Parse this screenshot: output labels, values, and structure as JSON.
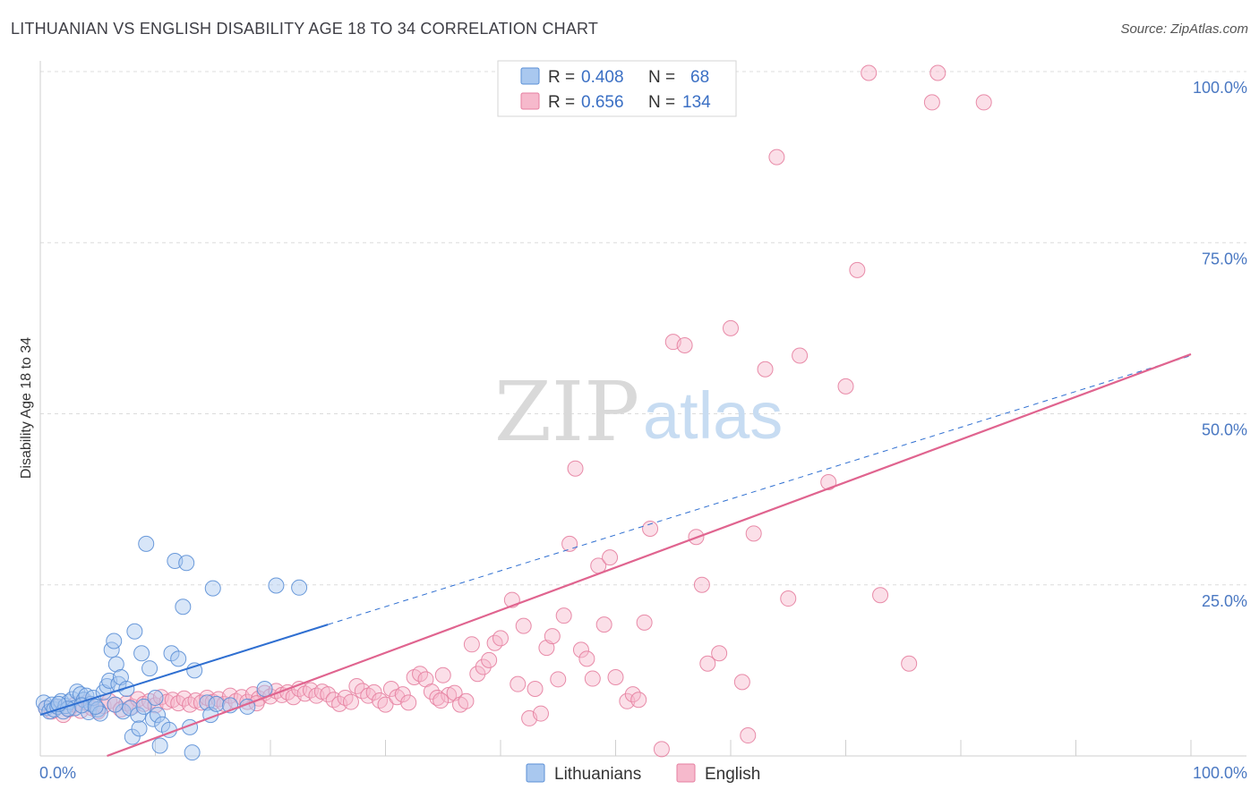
{
  "header": {
    "title": "LITHUANIAN VS ENGLISH DISABILITY AGE 18 TO 34 CORRELATION CHART",
    "source": "Source: ZipAtlas.com"
  },
  "legend_box": {
    "rows": [
      {
        "r_label": "R = ",
        "r_value": "0.408",
        "n_label": "N = ",
        "n_value": "68"
      },
      {
        "r_label": "R = ",
        "r_value": "0.656",
        "n_label": "N = ",
        "n_value": "134"
      }
    ]
  },
  "bottom_legend": {
    "items": [
      "Lithuanians",
      "English"
    ]
  },
  "watermark": {
    "zip": "ZIP",
    "atlas": "atlas"
  },
  "colors": {
    "blue_fill": "#a9c8ef",
    "blue_stroke": "#5b8fd6",
    "blue_line": "#2f6fd1",
    "pink_fill": "#f6b9cc",
    "pink_stroke": "#e57fa0",
    "pink_line": "#e0648f",
    "tick_label": "#4a78c2",
    "grid": "#dcdcdc"
  },
  "chart_data": {
    "type": "scatter",
    "xlabel": "",
    "ylabel": "Disability Age 18 to 34",
    "xlim": [
      0,
      100
    ],
    "ylim": [
      0,
      100
    ],
    "x_tick_labels": [
      "0.0%",
      "100.0%"
    ],
    "y_ticks": [
      25,
      50,
      75,
      100
    ],
    "y_tick_labels": [
      "25.0%",
      "50.0%",
      "75.0%",
      "100.0%"
    ],
    "grid": true,
    "legend_placement": "top-center",
    "series": [
      {
        "name": "Lithuanians",
        "R": 0.408,
        "N": 68,
        "trend": {
          "x0": 0,
          "y0": 6.0,
          "x1": 25,
          "y1": 19.2,
          "x_dash_end": 100,
          "y_dash_end": 58.5
        },
        "points": [
          [
            0.3,
            7.8
          ],
          [
            0.5,
            7.0
          ],
          [
            0.8,
            6.5
          ],
          [
            1.0,
            7.5
          ],
          [
            1.2,
            6.8
          ],
          [
            1.5,
            7.2
          ],
          [
            1.8,
            8.0
          ],
          [
            2.0,
            6.5
          ],
          [
            2.2,
            7.3
          ],
          [
            2.5,
            7.9
          ],
          [
            2.8,
            8.3
          ],
          [
            3.0,
            7.0
          ],
          [
            3.2,
            9.4
          ],
          [
            3.5,
            9.0
          ],
          [
            3.8,
            8.2
          ],
          [
            4.0,
            8.8
          ],
          [
            4.2,
            6.4
          ],
          [
            4.4,
            7.6
          ],
          [
            4.6,
            8.5
          ],
          [
            5.0,
            6.8
          ],
          [
            5.2,
            6.2
          ],
          [
            5.5,
            9.3
          ],
          [
            5.8,
            10.2
          ],
          [
            6.0,
            11.0
          ],
          [
            6.2,
            15.5
          ],
          [
            6.4,
            16.8
          ],
          [
            6.6,
            13.4
          ],
          [
            6.8,
            10.5
          ],
          [
            7.0,
            11.5
          ],
          [
            7.2,
            6.5
          ],
          [
            7.5,
            9.8
          ],
          [
            7.8,
            7.0
          ],
          [
            8.0,
            2.8
          ],
          [
            8.2,
            18.2
          ],
          [
            8.5,
            6.0
          ],
          [
            8.6,
            4.0
          ],
          [
            8.8,
            15.0
          ],
          [
            9.0,
            7.2
          ],
          [
            9.2,
            31.0
          ],
          [
            9.5,
            12.8
          ],
          [
            9.8,
            5.4
          ],
          [
            10.0,
            8.5
          ],
          [
            10.2,
            6.0
          ],
          [
            10.4,
            1.5
          ],
          [
            10.6,
            4.6
          ],
          [
            11.2,
            3.8
          ],
          [
            11.4,
            15.0
          ],
          [
            11.7,
            28.5
          ],
          [
            12.0,
            14.2
          ],
          [
            12.4,
            21.8
          ],
          [
            12.7,
            28.2
          ],
          [
            13.0,
            4.2
          ],
          [
            13.2,
            0.5
          ],
          [
            13.4,
            12.5
          ],
          [
            14.5,
            7.8
          ],
          [
            14.8,
            6.0
          ],
          [
            15.0,
            24.5
          ],
          [
            15.3,
            7.6
          ],
          [
            16.5,
            7.4
          ],
          [
            18.0,
            7.2
          ],
          [
            19.5,
            9.8
          ],
          [
            20.5,
            24.9
          ],
          [
            22.5,
            24.6
          ],
          [
            3.6,
            7.4
          ],
          [
            4.8,
            7.2
          ],
          [
            6.5,
            7.5
          ],
          [
            2.4,
            6.9
          ],
          [
            1.6,
            7.6
          ]
        ]
      },
      {
        "name": "English",
        "R": 0.656,
        "N": 134,
        "trend": {
          "x0": 5.8,
          "y0": 0,
          "x1": 100,
          "y1": 58.7
        },
        "points": [
          [
            0.5,
            7.0
          ],
          [
            1.0,
            6.5
          ],
          [
            1.5,
            7.2
          ],
          [
            2.0,
            6.0
          ],
          [
            2.5,
            6.8
          ],
          [
            3.0,
            7.5
          ],
          [
            3.5,
            6.6
          ],
          [
            4.0,
            7.8
          ],
          [
            4.5,
            7.0
          ],
          [
            5.0,
            6.5
          ],
          [
            5.5,
            7.3
          ],
          [
            6.0,
            8.0
          ],
          [
            6.5,
            7.5
          ],
          [
            7.0,
            6.8
          ],
          [
            7.5,
            7.7
          ],
          [
            8.0,
            7.2
          ],
          [
            8.5,
            8.3
          ],
          [
            9.0,
            7.6
          ],
          [
            9.5,
            8.0
          ],
          [
            10.0,
            7.4
          ],
          [
            10.5,
            8.6
          ],
          [
            11.0,
            7.9
          ],
          [
            11.5,
            8.2
          ],
          [
            12.0,
            7.7
          ],
          [
            12.5,
            8.4
          ],
          [
            13.0,
            7.5
          ],
          [
            13.5,
            8.1
          ],
          [
            14.0,
            7.8
          ],
          [
            14.5,
            8.5
          ],
          [
            15.0,
            7.9
          ],
          [
            15.5,
            8.3
          ],
          [
            16.0,
            7.6
          ],
          [
            16.5,
            8.8
          ],
          [
            17.0,
            8.0
          ],
          [
            17.5,
            8.6
          ],
          [
            18.0,
            7.9
          ],
          [
            18.5,
            9.0
          ],
          [
            19.0,
            8.4
          ],
          [
            19.5,
            9.2
          ],
          [
            20.0,
            8.7
          ],
          [
            20.5,
            9.5
          ],
          [
            21.0,
            8.9
          ],
          [
            21.5,
            9.3
          ],
          [
            22.0,
            8.6
          ],
          [
            22.5,
            9.8
          ],
          [
            23.0,
            9.1
          ],
          [
            23.5,
            9.6
          ],
          [
            24.0,
            8.8
          ],
          [
            24.5,
            9.4
          ],
          [
            25.0,
            9.0
          ],
          [
            25.5,
            8.2
          ],
          [
            26.0,
            7.6
          ],
          [
            26.5,
            8.5
          ],
          [
            27.0,
            7.9
          ],
          [
            27.5,
            10.2
          ],
          [
            28.0,
            9.5
          ],
          [
            28.5,
            8.8
          ],
          [
            29.0,
            9.3
          ],
          [
            29.5,
            8.1
          ],
          [
            30.0,
            7.5
          ],
          [
            30.5,
            9.8
          ],
          [
            31.0,
            8.6
          ],
          [
            31.5,
            9.0
          ],
          [
            32.0,
            7.8
          ],
          [
            32.5,
            11.5
          ],
          [
            33.0,
            12.0
          ],
          [
            33.5,
            11.2
          ],
          [
            34.0,
            9.4
          ],
          [
            34.5,
            8.5
          ],
          [
            35.0,
            11.8
          ],
          [
            35.5,
            8.9
          ],
          [
            36.0,
            9.2
          ],
          [
            36.5,
            7.5
          ],
          [
            37.0,
            8.0
          ],
          [
            37.5,
            16.3
          ],
          [
            38.0,
            12.0
          ],
          [
            38.5,
            13.0
          ],
          [
            39.0,
            14.0
          ],
          [
            39.5,
            16.5
          ],
          [
            40.0,
            17.2
          ],
          [
            41.0,
            22.8
          ],
          [
            41.5,
            10.5
          ],
          [
            42.0,
            19.0
          ],
          [
            42.5,
            5.5
          ],
          [
            43.0,
            9.8
          ],
          [
            43.5,
            6.2
          ],
          [
            44.0,
            15.8
          ],
          [
            44.5,
            17.5
          ],
          [
            45.0,
            11.2
          ],
          [
            45.5,
            20.5
          ],
          [
            46.0,
            31.0
          ],
          [
            46.5,
            42.0
          ],
          [
            47.0,
            15.5
          ],
          [
            47.5,
            14.2
          ],
          [
            48.0,
            11.3
          ],
          [
            48.5,
            27.8
          ],
          [
            49.0,
            19.2
          ],
          [
            49.5,
            29.0
          ],
          [
            50.0,
            11.5
          ],
          [
            51.0,
            8.0
          ],
          [
            51.5,
            9.0
          ],
          [
            52.0,
            8.2
          ],
          [
            52.5,
            19.5
          ],
          [
            53.0,
            33.2
          ],
          [
            54.0,
            1.0
          ],
          [
            55.0,
            60.5
          ],
          [
            56.0,
            60.0
          ],
          [
            57.0,
            32.0
          ],
          [
            57.5,
            25.0
          ],
          [
            58.0,
            13.5
          ],
          [
            59.0,
            15.0
          ],
          [
            60.0,
            62.5
          ],
          [
            61.0,
            10.8
          ],
          [
            61.5,
            3.0
          ],
          [
            62.0,
            32.5
          ],
          [
            63.0,
            56.5
          ],
          [
            64.0,
            87.5
          ],
          [
            65.0,
            23.0
          ],
          [
            66.0,
            58.5
          ],
          [
            68.5,
            40.0
          ],
          [
            70.0,
            54.0
          ],
          [
            71.0,
            71.0
          ],
          [
            72.0,
            99.8
          ],
          [
            73.0,
            23.5
          ],
          [
            75.5,
            13.5
          ],
          [
            77.5,
            95.5
          ],
          [
            78.0,
            99.8
          ],
          [
            82.0,
            95.5
          ],
          [
            34.8,
            8.1
          ],
          [
            18.8,
            7.7
          ]
        ]
      }
    ]
  }
}
